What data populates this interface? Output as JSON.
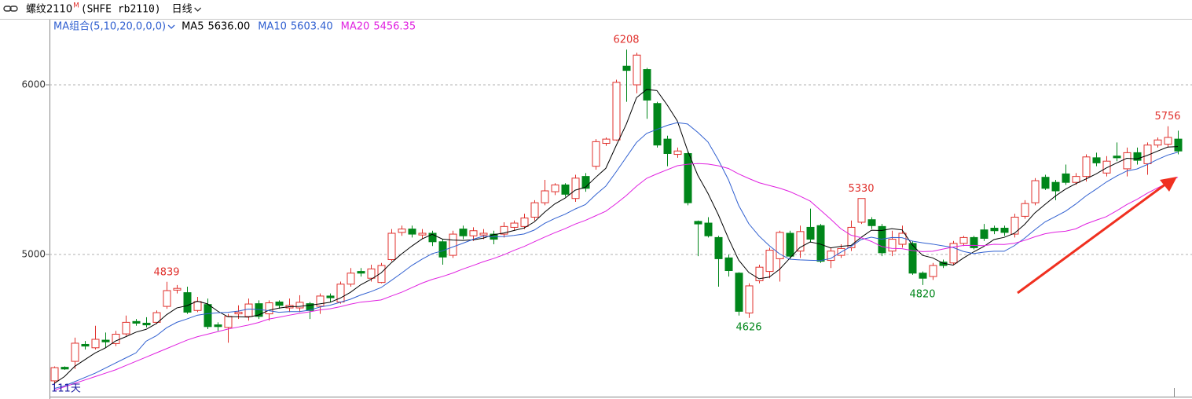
{
  "header": {
    "symbol": "螺纹2110",
    "flag": "M",
    "code": "(SHFE rb2110)",
    "period": "日线"
  },
  "chart_data": {
    "type": "candlestick",
    "ma_group": "MA组合(5,10,20,0,0,0)",
    "count": {
      "value": 111,
      "label": "111天"
    },
    "up_color": "#e0302c",
    "down_color": "#00861a",
    "ylim": [
      4162,
      6375
    ],
    "yticks": [
      5000,
      6000
    ],
    "grid": true,
    "open": [
      4255,
      4335,
      4370,
      4470,
      4450,
      4495,
      4475,
      4532,
      4605,
      4595,
      4600,
      4694,
      4790,
      4775,
      4670,
      4705,
      4585,
      4570,
      4650,
      4634,
      4710,
      4650,
      4720,
      4685,
      4685,
      4710,
      4695,
      4755,
      4720,
      4825,
      4900,
      4860,
      4835,
      4970,
      5130,
      5150,
      5115,
      5125,
      5075,
      4995,
      5150,
      5110,
      5115,
      5120,
      5120,
      5160,
      5165,
      5220,
      5305,
      5370,
      5410,
      5330,
      5460,
      5520,
      5655,
      5675,
      6110,
      6000,
      6090,
      5890,
      5680,
      5590,
      5595,
      5195,
      5185,
      5100,
      4980,
      4890,
      4655,
      4845,
      4900,
      4975,
      5125,
      5020,
      5160,
      5170,
      4965,
      4995,
      5040,
      5190,
      5205,
      5165,
      5020,
      5060,
      5065,
      4890,
      4870,
      4955,
      4950,
      5065,
      5100,
      5145,
      5155,
      5155,
      5120,
      5225,
      5305,
      5455,
      5425,
      5475,
      5425,
      5460,
      5570,
      5480,
      5580,
      5505,
      5600,
      5535,
      5645,
      5650,
      5680
    ],
    "high": [
      4340,
      4340,
      4510,
      4490,
      4580,
      4540,
      4550,
      4640,
      4620,
      4630,
      4670,
      4839,
      4820,
      4810,
      4750,
      4740,
      4600,
      4650,
      4700,
      4740,
      4730,
      4730,
      4730,
      4740,
      4760,
      4720,
      4770,
      4770,
      4840,
      4920,
      4920,
      4940,
      4950,
      5150,
      5170,
      5170,
      5150,
      5140,
      5090,
      5140,
      5170,
      5160,
      5150,
      5140,
      5190,
      5200,
      5240,
      5320,
      5440,
      5420,
      5420,
      5470,
      5480,
      5680,
      5690,
      6030,
      6208,
      6190,
      6100,
      5900,
      5700,
      5630,
      5610,
      5200,
      5220,
      5110,
      5000,
      4895,
      4830,
      4940,
      5040,
      5140,
      5140,
      5170,
      5270,
      5180,
      5040,
      5060,
      5200,
      5330,
      5220,
      5180,
      5140,
      5170,
      5080,
      4900,
      4950,
      4970,
      5080,
      5110,
      5110,
      5180,
      5170,
      5170,
      5240,
      5320,
      5450,
      5470,
      5440,
      5530,
      5480,
      5590,
      5600,
      5580,
      5660,
      5630,
      5630,
      5660,
      5690,
      5756,
      5730
    ],
    "low": [
      4230,
      4320,
      4325,
      4440,
      4440,
      4450,
      4460,
      4520,
      4580,
      4570,
      4590,
      4680,
      4770,
      4650,
      4660,
      4560,
      4550,
      4480,
      4620,
      4610,
      4620,
      4610,
      4680,
      4660,
      4660,
      4620,
      4650,
      4720,
      4710,
      4810,
      4870,
      4840,
      4830,
      4960,
      5110,
      5100,
      5090,
      5050,
      4940,
      4980,
      5090,
      5080,
      5090,
      5060,
      5100,
      5140,
      5150,
      5200,
      5290,
      5350,
      5340,
      5310,
      5370,
      5500,
      5640,
      5670,
      5900,
      5950,
      5800,
      5630,
      5520,
      5570,
      5290,
      4990,
      5100,
      4810,
      4870,
      4640,
      4626,
      4830,
      4860,
      4840,
      4970,
      4980,
      5070,
      4950,
      4920,
      4980,
      5020,
      5180,
      5150,
      4990,
      4990,
      5040,
      4880,
      4820,
      4850,
      4920,
      4940,
      5050,
      5030,
      5080,
      5120,
      5110,
      5100,
      5210,
      5290,
      5380,
      5320,
      5410,
      5410,
      5430,
      5520,
      5460,
      5550,
      5460,
      5530,
      5470,
      5630,
      5630,
      5590
    ],
    "close": [
      4333,
      4325,
      4477,
      4460,
      4500,
      4485,
      4530,
      4600,
      4595,
      4585,
      4657,
      4787,
      4800,
      4660,
      4722,
      4575,
      4575,
      4635,
      4660,
      4708,
      4635,
      4715,
      4700,
      4700,
      4718,
      4670,
      4755,
      4745,
      4825,
      4890,
      4890,
      4915,
      4935,
      5125,
      5150,
      5120,
      5125,
      5075,
      4985,
      5120,
      5110,
      5140,
      5125,
      5090,
      5165,
      5185,
      5215,
      5305,
      5375,
      5410,
      5355,
      5450,
      5390,
      5665,
      5680,
      6015,
      6085,
      6175,
      5910,
      5645,
      5595,
      5610,
      5305,
      5180,
      5110,
      4975,
      4905,
      4665,
      4815,
      4925,
      5025,
      5130,
      4990,
      5135,
      5090,
      4960,
      5020,
      5035,
      5160,
      5330,
      5170,
      5010,
      5090,
      5125,
      4890,
      4860,
      4935,
      4935,
      5065,
      5100,
      5040,
      5095,
      5140,
      5130,
      5220,
      5300,
      5435,
      5390,
      5375,
      5425,
      5460,
      5575,
      5540,
      5550,
      5570,
      5600,
      5555,
      5645,
      5675,
      5690,
      5610
    ],
    "series": [
      {
        "name": "MA5",
        "color": "#000000",
        "legend_value": {
          "value": 5636,
          "label": "5636.00"
        },
        "values": [
          4240,
          4280,
          4340,
          4380,
          4419,
          4449,
          4490,
          4515,
          4542,
          4559,
          4593,
          4645,
          4685,
          4698,
          4725,
          4709,
          4666,
          4633,
          4633,
          4631,
          4643,
          4671,
          4684,
          4692,
          4694,
          4701,
          4709,
          4718,
          4743,
          4777,
          4821,
          4853,
          4891,
          4951,
          5003,
          5049,
          5091,
          5119,
          5091,
          5085,
          5083,
          5086,
          5096,
          5117,
          5126,
          5141,
          5156,
          5192,
          5249,
          5298,
          5332,
          5379,
          5396,
          5454,
          5508,
          5640,
          5767,
          5924,
          5973,
          5966,
          5882,
          5787,
          5613,
          5467,
          5360,
          5236,
          5095,
          4967,
          4894,
          4857,
          4867,
          4912,
          4977,
          5041,
          5074,
          5061,
          5039,
          5048,
          5053,
          5101,
          5143,
          5141,
          5152,
          5145,
          5057,
          4995,
          4980,
          4949,
          4937,
          4979,
          5015,
          5047,
          5088,
          5101,
          5125,
          5177,
          5245,
          5295,
          5344,
          5385,
          5417,
          5445,
          5475,
          5510,
          5539,
          5567,
          5563,
          5584,
          5609,
          5633,
          5636
        ]
      },
      {
        "name": "MA10",
        "color": "#2f5fd0",
        "legend_value": {
          "value": 5603.4,
          "label": "5603.40"
        },
        "values": [
          4210,
          4225,
          4250,
          4275,
          4300,
          4330,
          4360,
          4390,
          4420,
          4489,
          4521,
          4568,
          4600,
          4620,
          4642,
          4651,
          4656,
          4659,
          4666,
          4678,
          4676,
          4669,
          4659,
          4663,
          4663,
          4672,
          4690,
          4701,
          4718,
          4736,
          4761,
          4781,
          4805,
          4847,
          4890,
          4935,
          4972,
          5005,
          5021,
          5044,
          5066,
          5089,
          5108,
          5104,
          5106,
          5112,
          5121,
          5144,
          5183,
          5212,
          5237,
          5268,
          5294,
          5352,
          5403,
          5486,
          5573,
          5660,
          5714,
          5737,
          5761,
          5777,
          5769,
          5720,
          5663,
          5559,
          5441,
          5290,
          5181,
          5109,
          5052,
          5004,
          4972,
          4968,
          4966,
          4964,
          4976,
          5013,
          5047,
          5088,
          5102,
          5090,
          5100,
          5099,
          5079,
          5069,
          5061,
          5051,
          5041,
          5018,
          5005,
          5014,
          5019,
          5019,
          5052,
          5096,
          5146,
          5192,
          5223,
          5255,
          5297,
          5345,
          5385,
          5427,
          5462,
          5492,
          5504,
          5530,
          5560,
          5586,
          5603
        ]
      },
      {
        "name": "MA20",
        "color": "#e020e0",
        "legend_value": {
          "value": 5456.35,
          "label": "5456.35"
        },
        "values": [
          4200,
          4220,
          4240,
          4260,
          4280,
          4300,
          4320,
          4345,
          4370,
          4395,
          4420,
          4445,
          4470,
          4495,
          4515,
          4530,
          4545,
          4560,
          4572,
          4584,
          4599,
          4619,
          4630,
          4642,
          4653,
          4662,
          4673,
          4680,
          4692,
          4707,
          4719,
          4725,
          4732,
          4755,
          4777,
          4804,
          4831,
          4853,
          4870,
          4890,
          4914,
          4935,
          4957,
          4976,
          4998,
          5024,
          5047,
          5075,
          5102,
          5128,
          5152,
          5179,
          5201,
          5228,
          5255,
          5299,
          5347,
          5402,
          5449,
          5475,
          5499,
          5523,
          5532,
          5536,
          5533,
          5523,
          5507,
          5475,
          5448,
          5423,
          5407,
          5391,
          5371,
          5344,
          5315,
          5262,
          5209,
          5152,
          5114,
          5099,
          5077,
          5047,
          5036,
          5034,
          5023,
          5017,
          5019,
          5032,
          5044,
          5053,
          5054,
          5052,
          5060,
          5059,
          5066,
          5083,
          5104,
          5122,
          5132,
          5137,
          5151,
          5180,
          5202,
          5223,
          5257,
          5294,
          5325,
          5361,
          5392,
          5421,
          5456
        ]
      }
    ]
  }
}
